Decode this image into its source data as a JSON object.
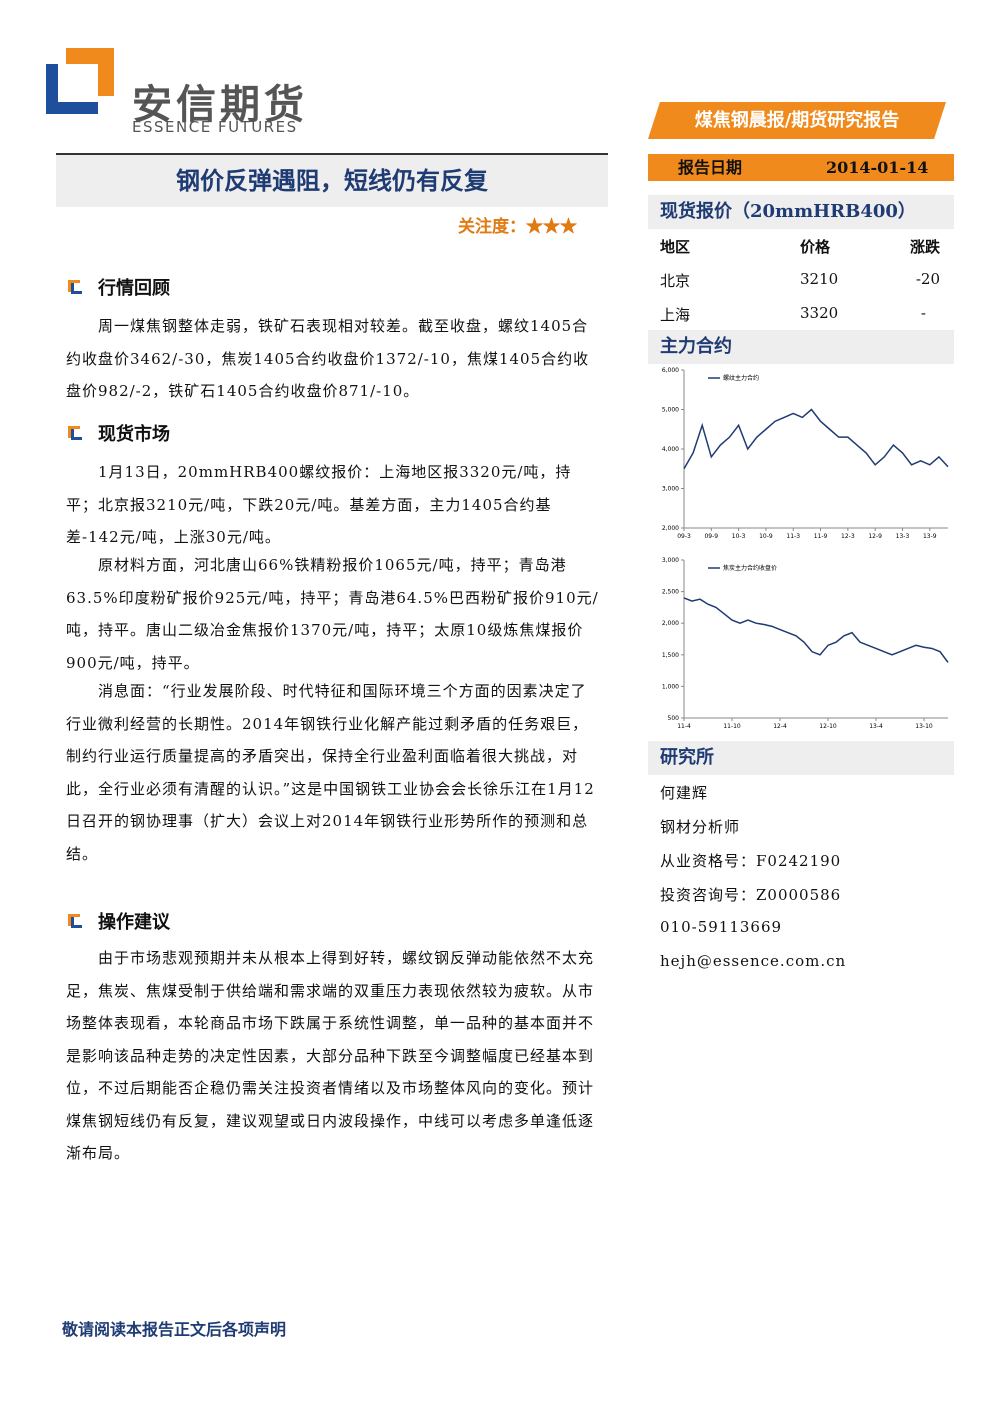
{
  "header": {
    "brand": "安信期货",
    "brand_en": "ESSENCE FUTURES",
    "banner": "煤焦钢晨报/期货研究报告",
    "date_label": "报告日期",
    "date": "2014-01-14"
  },
  "article": {
    "title": "钢价反弹遇阻，短线仍有反复",
    "attention_label": "关注度：",
    "attention": "★★★",
    "sections": [
      {
        "heading": "行情回顾",
        "paragraphs": [
          "周一煤焦钢整体走弱，铁矿石表现相对较差。截至收盘，螺纹1405合约收盘价3462/-30，焦炭1405合约收盘价1372/-10，焦煤1405合约收盘价982/-2，铁矿石1405合约收盘价871/-10。"
        ]
      },
      {
        "heading": "现货市场",
        "paragraphs": [
          "1月13日，20mmHRB400螺纹报价：上海地区报3320元/吨，持平；北京报3210元/吨，下跌20元/吨。基差方面，主力1405合约基差-142元/吨，上涨30元/吨。",
          "原材料方面，河北唐山66%铁精粉报价1065元/吨，持平；青岛港63.5%印度粉矿报价925元/吨，持平；青岛港64.5%巴西粉矿报价910元/吨，持平。唐山二级冶金焦报价1370元/吨，持平；太原10级炼焦煤报价900元/吨，持平。",
          "消息面：“行业发展阶段、时代特征和国际环境三个方面的因素决定了行业微利经营的长期性。2014年钢铁行业化解产能过剩矛盾的任务艰巨，制约行业运行质量提高的矛盾突出，保持全行业盈利面临着很大挑战，对此，全行业必须有清醒的认识。”这是中国钢铁工业协会会长徐乐江在1月12日召开的钢协理事（扩大）会议上对2014年钢铁行业形势所作的预测和总结。"
        ]
      },
      {
        "heading": "操作建议",
        "paragraphs": [
          "由于市场悲观预期并未从根本上得到好转，螺纹钢反弹动能依然不太充足，焦炭、焦煤受制于供给端和需求端的双重压力表现依然较为疲软。从市场整体表现看，本轮商品市场下跌属于系统性调整，单一品种的基本面并不是影响该品种走势的决定性因素，大部分品种下跌至今调整幅度已经基本到位，不过后期能否企稳仍需关注投资者情绪以及市场整体风向的变化。预计煤焦钢短线仍有反复，建议观望或日内波段操作，中线可以考虑多单逢低逐渐布局。"
        ]
      }
    ]
  },
  "sidebar": {
    "spot_heading": "现货报价（20mmHRB400）",
    "table": {
      "header": [
        "地区",
        "价格",
        "涨跌"
      ],
      "rows": [
        [
          "北京",
          "3210",
          "-20"
        ],
        [
          "上海",
          "3320",
          "-"
        ]
      ]
    },
    "contract_heading": "主力合约",
    "research_heading": "研究所",
    "analyst": [
      "何建辉",
      "钢材分析师",
      "从业资格号：F0242190",
      "投资咨询号：Z0000586",
      "010-59113669",
      "hejh@essence.com.cn"
    ]
  },
  "footer": "敬请阅读本报告正文后各项声明",
  "chart_data": [
    {
      "type": "line",
      "legend": "螺纹主力合约",
      "color": "#1f3b73",
      "x": [
        "09-3",
        null,
        null,
        "09-9",
        null,
        null,
        "10-3",
        null,
        null,
        "10-9",
        null,
        null,
        "11-3",
        null,
        null,
        "11-9",
        null,
        null,
        "12-3",
        null,
        null,
        "12-9",
        null,
        null,
        "13-3",
        null,
        null,
        "13-9",
        null,
        null
      ],
      "values": [
        3500,
        3900,
        4600,
        3800,
        4100,
        4300,
        4600,
        4000,
        4300,
        4500,
        4700,
        4800,
        4900,
        4800,
        5000,
        4700,
        4500,
        4300,
        4300,
        4100,
        3900,
        3600,
        3800,
        4100,
        3900,
        3600,
        3700,
        3600,
        3800,
        3550
      ],
      "ylim": [
        2000,
        6000
      ],
      "yticks": [
        {
          "value": 2000,
          "label": "2,000"
        },
        {
          "value": 3000,
          "label": "3,000"
        },
        {
          "value": 4000,
          "label": "4,000"
        },
        {
          "value": 5000,
          "label": "5,000"
        },
        {
          "value": 6000,
          "label": "6,000"
        }
      ]
    },
    {
      "type": "line",
      "legend": "焦炭主力合约收盘价",
      "color": "#1f3b73",
      "x": [
        "11-4",
        null,
        null,
        null,
        null,
        null,
        "11-10",
        null,
        null,
        null,
        null,
        null,
        "12-4",
        null,
        null,
        null,
        null,
        null,
        "12-10",
        null,
        null,
        null,
        null,
        null,
        "13-4",
        null,
        null,
        null,
        null,
        null,
        "13-10",
        null,
        null,
        null
      ],
      "values": [
        2400,
        2350,
        2380,
        2300,
        2250,
        2150,
        2050,
        2000,
        2050,
        2000,
        1980,
        1950,
        1900,
        1850,
        1800,
        1700,
        1550,
        1500,
        1650,
        1700,
        1800,
        1850,
        1700,
        1650,
        1600,
        1550,
        1500,
        1550,
        1600,
        1650,
        1620,
        1600,
        1550,
        1380
      ],
      "ylim": [
        500,
        3000
      ],
      "yticks": [
        500,
        {
          "value": 1000,
          "label": "1,000"
        },
        {
          "value": 1500,
          "label": "1,500"
        },
        {
          "value": 2000,
          "label": "2,000"
        },
        {
          "value": 2500,
          "label": "2,500"
        },
        {
          "value": 3000,
          "label": "3,000"
        }
      ]
    }
  ]
}
